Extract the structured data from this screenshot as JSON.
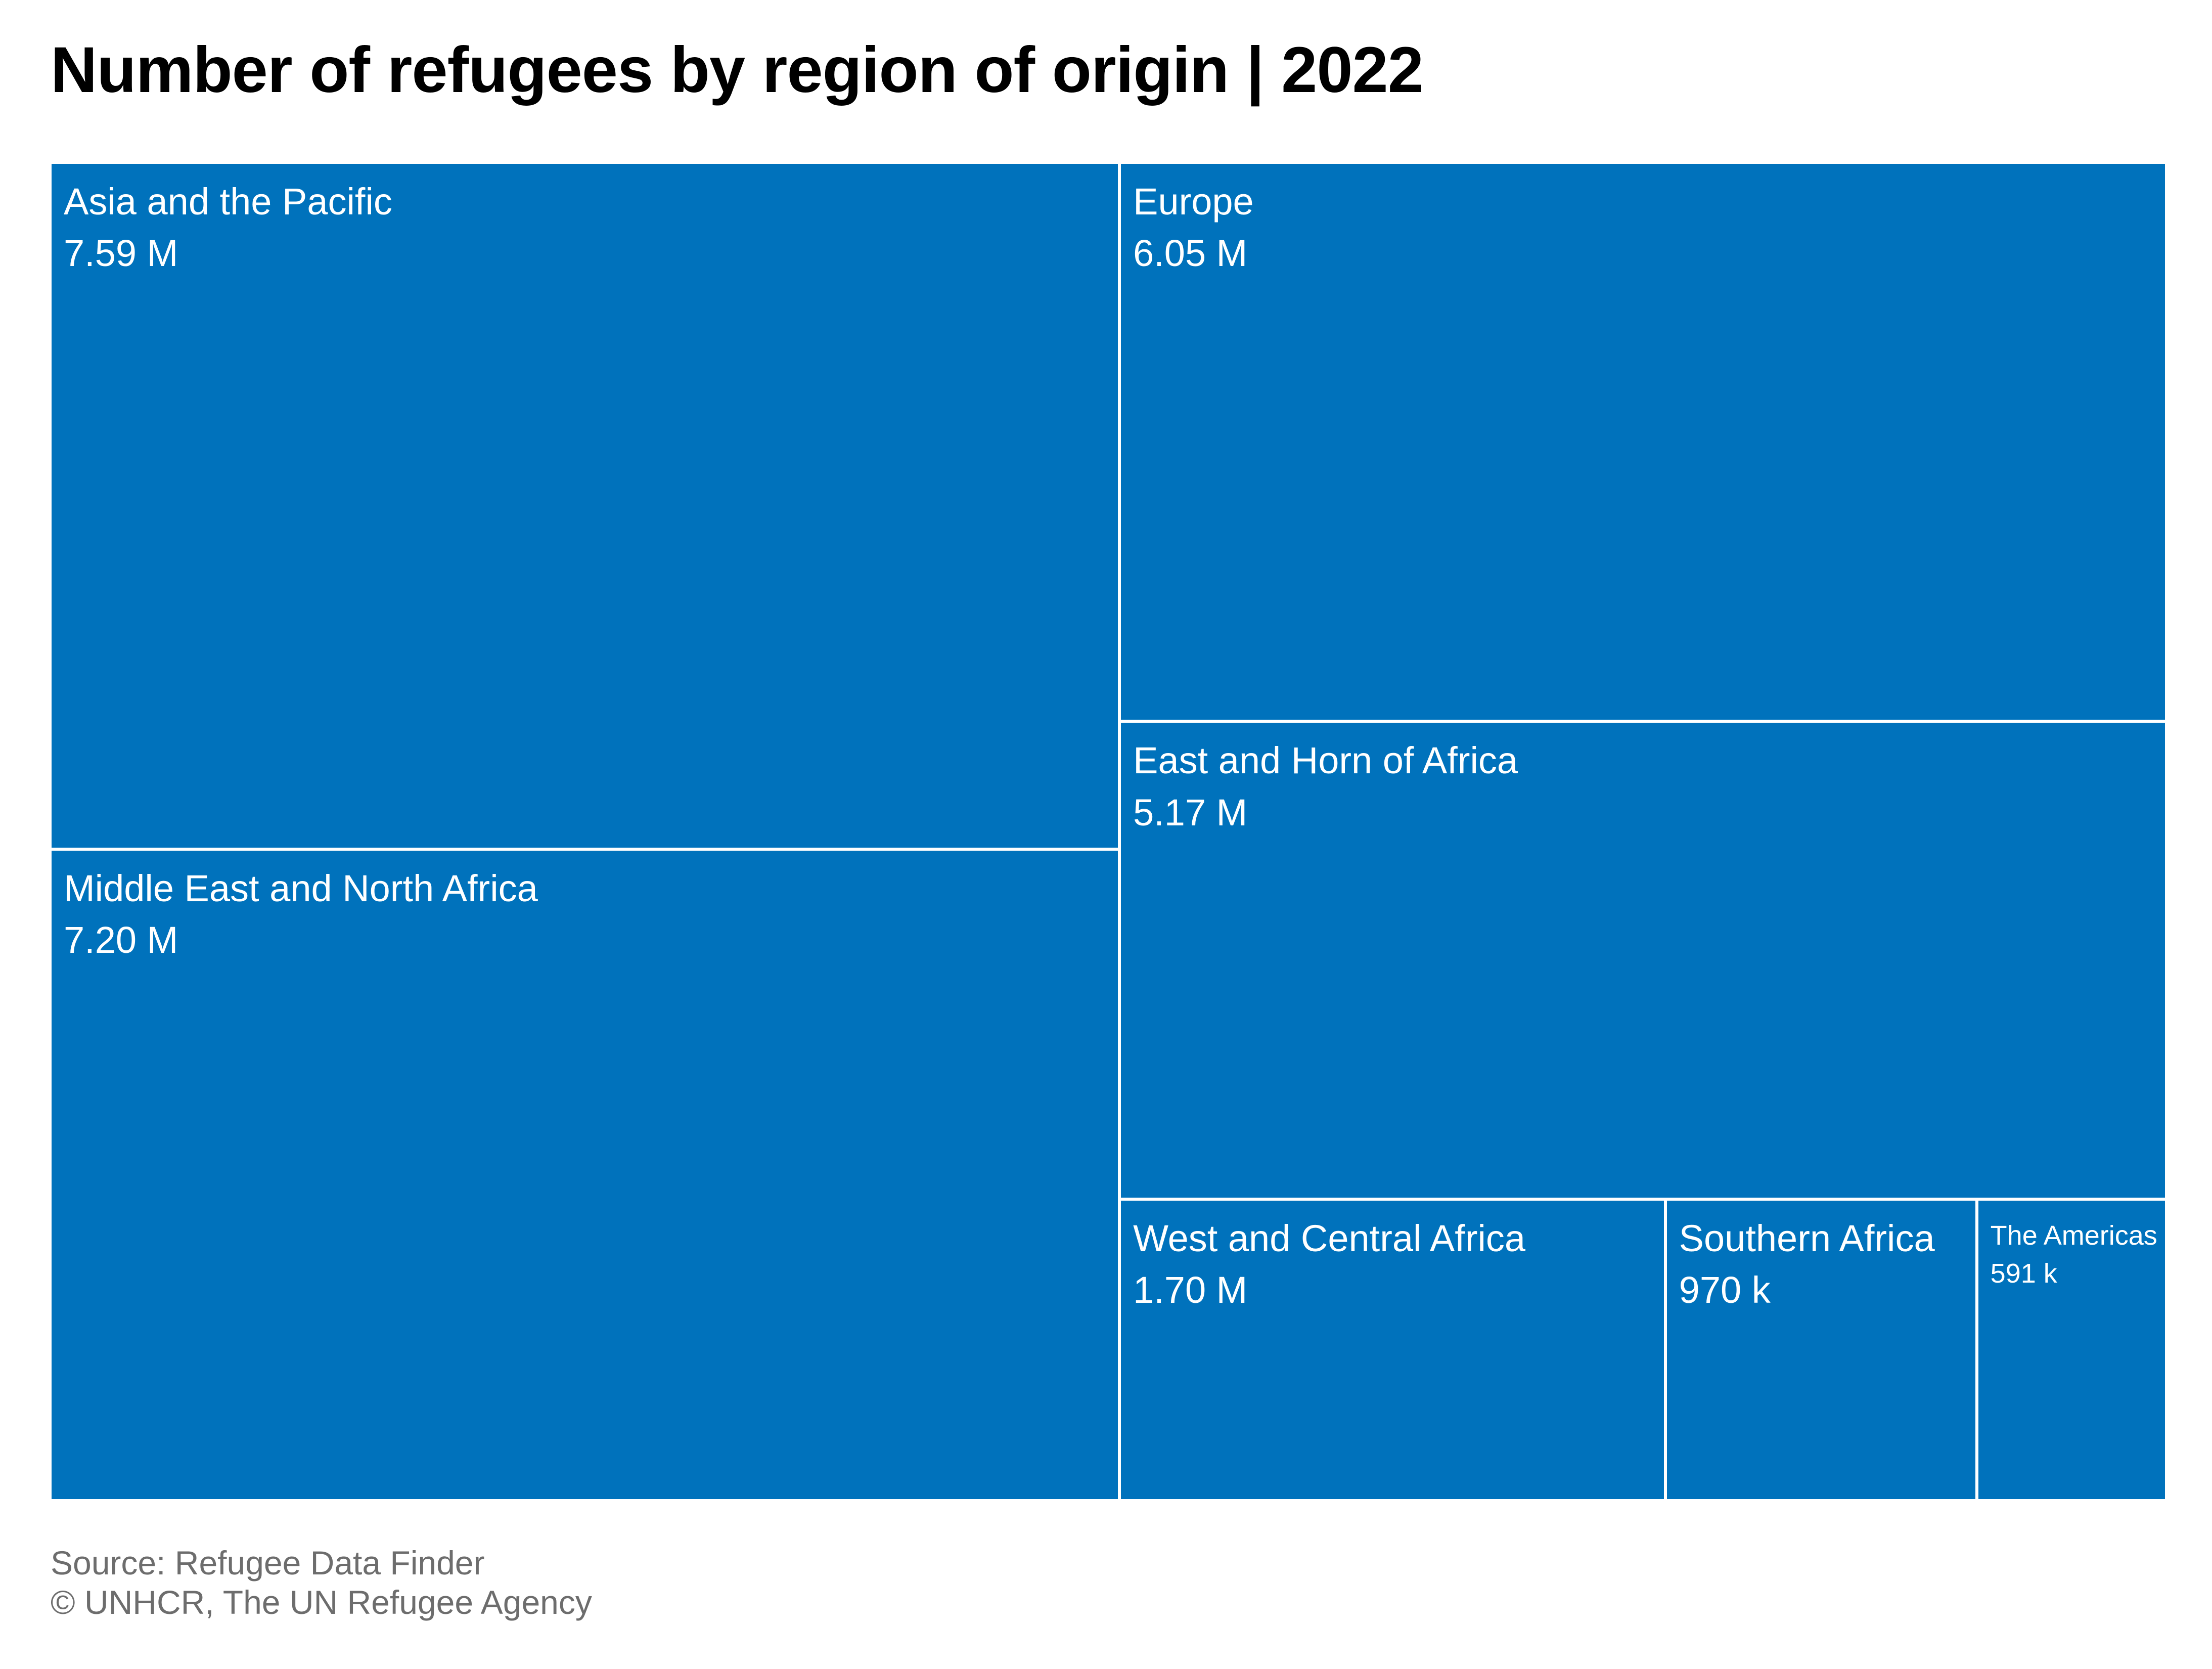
{
  "title": "Number of refugees by region of origin | 2022",
  "chart_data": {
    "type": "treemap",
    "title": "Number of refugees by region of origin | 2022",
    "color": "#0072bc",
    "items": [
      {
        "name": "Asia and the Pacific",
        "label": "7.59 M",
        "value": 7590000
      },
      {
        "name": "Middle East and North Africa",
        "label": "7.20 M",
        "value": 7200000
      },
      {
        "name": "Europe",
        "label": "6.05 M",
        "value": 6050000
      },
      {
        "name": "East and Horn of Africa",
        "label": "5.17 M",
        "value": 5170000
      },
      {
        "name": "West and Central Africa",
        "label": "1.70 M",
        "value": 1700000
      },
      {
        "name": "Southern Africa",
        "label": "970 k",
        "value": 970000
      },
      {
        "name": "The Americas",
        "label": "591 k",
        "value": 591000
      }
    ]
  },
  "footer": {
    "source": "Source: Refugee Data Finder",
    "credit": "© UNHCR, The UN Refugee Agency"
  }
}
